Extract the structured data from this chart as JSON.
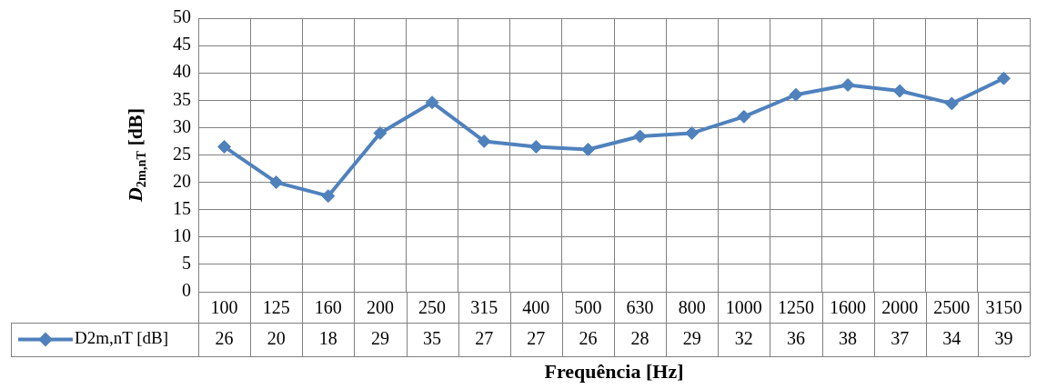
{
  "chart_data": {
    "type": "line",
    "xlabel": "Frequência [Hz]",
    "ylabel": "D$_{2m,nT}$ [dB]",
    "categories": [
      "100",
      "125",
      "160",
      "200",
      "250",
      "315",
      "400",
      "500",
      "630",
      "800",
      "1000",
      "1250",
      "1600",
      "2000",
      "2500",
      "3150"
    ],
    "series": [
      {
        "name": "D2m,nT [dB]",
        "color": "#4f81bd",
        "values": [
          26.5,
          20,
          17.5,
          29,
          34.6,
          27.5,
          26.5,
          26,
          28.4,
          29,
          32,
          36,
          37.8,
          36.7,
          34.4,
          39
        ],
        "value_labels": [
          "26",
          "20",
          "18",
          "29",
          "35",
          "27",
          "27",
          "26",
          "28",
          "29",
          "32",
          "36",
          "38",
          "37",
          "34",
          "39"
        ]
      }
    ],
    "ylim": [
      0,
      50
    ],
    "yticks": [
      0,
      5,
      10,
      15,
      20,
      25,
      30,
      35,
      40,
      45,
      50
    ],
    "grid": true,
    "marker": "diamond",
    "line_style": "solid"
  }
}
